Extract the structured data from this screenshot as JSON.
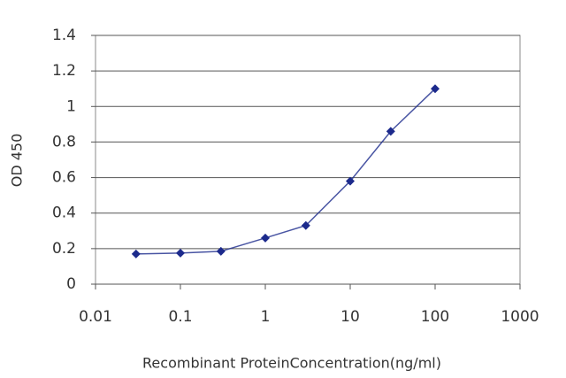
{
  "chart_data": {
    "type": "line",
    "x_label": "Recombinant ProteinConcentration(ng/ml)",
    "y_label": "OD 450",
    "x": [
      0.03,
      0.1,
      0.3,
      1,
      3,
      10,
      30,
      100
    ],
    "series": [
      {
        "name": "OD 450",
        "color": "#1c2a8c",
        "values": [
          0.17,
          0.175,
          0.185,
          0.26,
          0.33,
          0.58,
          0.86,
          1.1
        ]
      }
    ],
    "xlim": [
      0.01,
      1000
    ],
    "xticks": [
      0.01,
      0.1,
      1,
      10,
      100,
      1000
    ],
    "xscale": "log",
    "ylim": [
      0,
      1.4
    ],
    "yticks": [
      0,
      0.2,
      0.4,
      0.6,
      0.8,
      1,
      1.2,
      1.4
    ],
    "grid": true,
    "legend": false
  }
}
